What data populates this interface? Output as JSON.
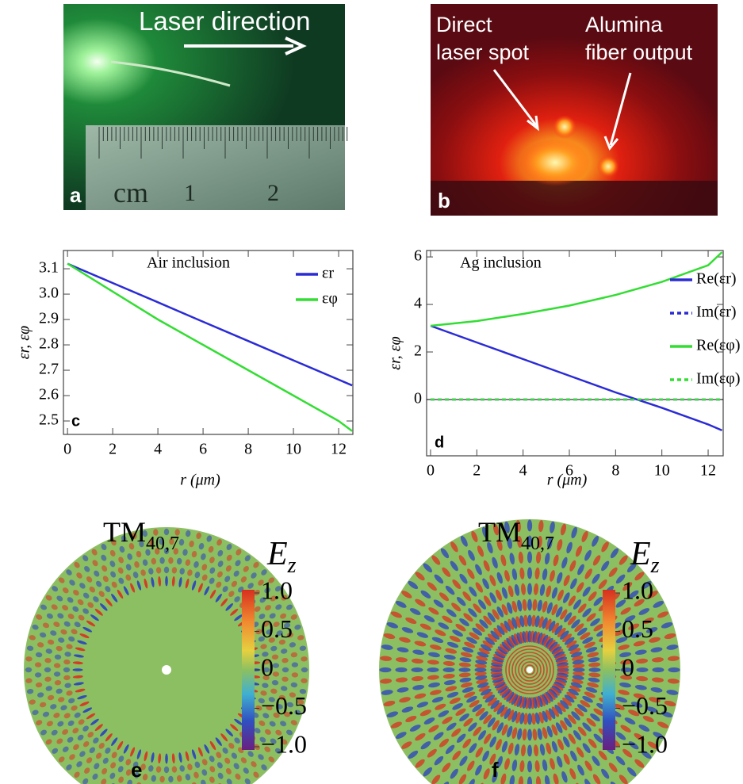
{
  "photos": [
    {
      "label": "a",
      "annotations": [
        "Laser direction"
      ],
      "ruler": {
        "unit": "cm",
        "marks": [
          "1",
          "2"
        ]
      }
    },
    {
      "label": "b",
      "annotations": [
        [
          "Direct",
          "laser spot"
        ],
        [
          "Alumina",
          "fiber output"
        ]
      ]
    }
  ],
  "chart_data": [
    {
      "type": "line",
      "panel": "c",
      "annotation": "Air inclusion",
      "x_label": "r (μm)",
      "y_label": "εr, εφ",
      "x": [
        0,
        2,
        4,
        6,
        8,
        10,
        12,
        12.6
      ],
      "series": [
        {
          "name": "εr",
          "color": "#2b2bd6",
          "values": [
            3.12,
            3.044,
            2.968,
            2.891,
            2.815,
            2.739,
            2.663,
            2.64
          ]
        },
        {
          "name": "εφ",
          "color": "#33dd33",
          "values": [
            3.12,
            3.01,
            2.9,
            2.8,
            2.7,
            2.6,
            2.5,
            2.46
          ]
        }
      ],
      "xlim": [
        -0.18,
        12.63
      ],
      "ylim": [
        2.447,
        3.172
      ],
      "xticks": [
        0,
        2,
        4,
        6,
        8,
        10,
        12
      ],
      "yticks": [
        2.5,
        2.6,
        2.7,
        2.8,
        2.9,
        {
          "value": 3,
          "label": "3.0"
        },
        3.1
      ],
      "legend": "upper right"
    },
    {
      "type": "line",
      "panel": "d",
      "annotation": "Ag inclusion",
      "x_label": "r (μm)",
      "y_label": "εr, εφ",
      "x": [
        0,
        2,
        4,
        6,
        8,
        10,
        12,
        12.6
      ],
      "series": [
        {
          "name": "Re(εr)",
          "color": "#2b2bd6",
          "values": [
            3.1,
            2.4,
            1.7,
            1.0,
            0.3,
            -0.35,
            -1.05,
            -1.3
          ]
        },
        {
          "name": "Im(εr)",
          "color": "#2b2bd6",
          "dash": true,
          "values": [
            0,
            0,
            0,
            0,
            0,
            0,
            0,
            0
          ]
        },
        {
          "name": "Re(εφ)",
          "color": "#33dd33",
          "values": [
            3.1,
            3.3,
            3.6,
            3.95,
            4.4,
            4.95,
            5.65,
            6.2
          ]
        },
        {
          "name": "Im(εφ)",
          "color": "#33dd33",
          "dash": true,
          "values": [
            0,
            0,
            0,
            0,
            0,
            0,
            0,
            0
          ]
        }
      ],
      "xlim": [
        -0.17,
        12.65
      ],
      "ylim": [
        -2.37,
        6.27
      ],
      "xticks": [
        0,
        2,
        4,
        6,
        8,
        10,
        12
      ],
      "yticks": [
        0,
        2,
        4,
        6
      ],
      "zero_line": true,
      "legend": "right"
    }
  ],
  "field_plots": [
    {
      "label": "e",
      "title": "TM",
      "title_sub": "40,7",
      "colorbar_label": "E",
      "colorbar_label_sub": "z",
      "clim": [
        -1,
        1
      ],
      "cticks": [
        {
          "value": 1,
          "label": "1.0"
        },
        0.5,
        0,
        {
          "value": -0.5,
          "label": "−0.5"
        },
        {
          "value": -1,
          "label": "−1.0"
        }
      ]
    },
    {
      "label": "f",
      "title": "TM",
      "title_sub": "40,7",
      "colorbar_label": "E",
      "colorbar_label_sub": "z",
      "clim": [
        -1,
        1
      ],
      "cticks": [
        {
          "value": 1,
          "label": "1.0"
        },
        0.5,
        0,
        {
          "value": -0.5,
          "label": "−0.5"
        },
        {
          "value": -1,
          "label": "−1.0"
        }
      ]
    }
  ]
}
